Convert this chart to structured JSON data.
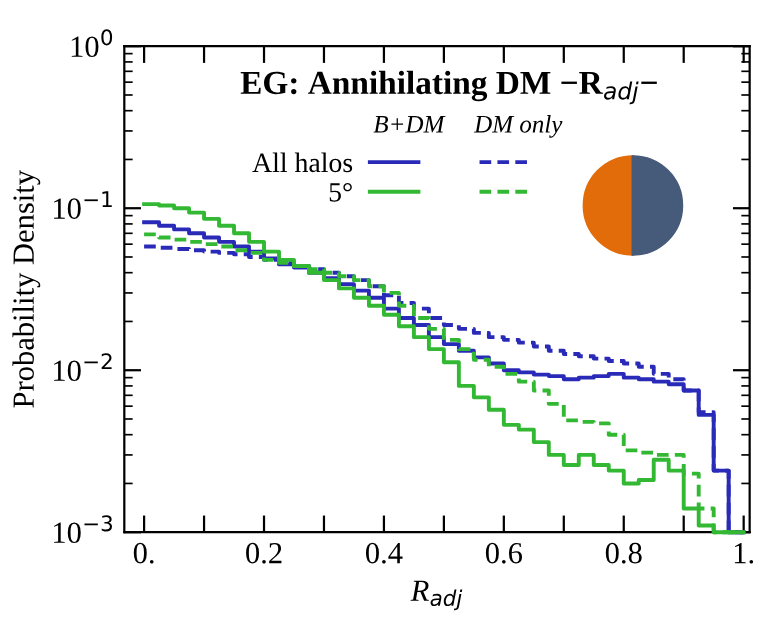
{
  "chart_data": {
    "type": "histogram",
    "title": "EG: Annihilating DM −R$_{adj}$−",
    "xlabel": "R$_{adj}$",
    "ylabel": "Probability Density",
    "bins": [
      0,
      0.025,
      0.05,
      0.075,
      0.1,
      0.125,
      0.15,
      0.175,
      0.2,
      0.225,
      0.25,
      0.275,
      0.3,
      0.325,
      0.35,
      0.375,
      0.4,
      0.425,
      0.45,
      0.475,
      0.5,
      0.525,
      0.55,
      0.575,
      0.6,
      0.625,
      0.65,
      0.675,
      0.7,
      0.725,
      0.75,
      0.775,
      0.8,
      0.825,
      0.85,
      0.875,
      0.9,
      0.925,
      0.95,
      0.975,
      1.0
    ],
    "series": [
      {
        "name": "All halos",
        "color": "#2a2ab8",
        "line_style": "solid",
        "values": [
          0.082,
          0.078,
          0.074,
          0.07,
          0.066,
          0.062,
          0.058,
          0.054,
          0.049,
          0.045,
          0.043,
          0.04,
          0.037,
          0.034,
          0.031,
          0.028,
          0.024,
          0.021,
          0.019,
          0.016,
          0.0145,
          0.0132,
          0.012,
          0.011,
          0.01,
          0.0097,
          0.0094,
          0.0092,
          0.0088,
          0.009,
          0.0092,
          0.0095,
          0.009,
          0.0088,
          0.0085,
          0.0082,
          0.0075,
          0.0053,
          0.0024,
          0.001
        ]
      },
      {
        "color": "#2a2ab8",
        "line_style": "dashed",
        "values": [
          0.058,
          0.057,
          0.056,
          0.055,
          0.054,
          0.053,
          0.052,
          0.05,
          0.048,
          0.046,
          0.044,
          0.042,
          0.04,
          0.038,
          0.036,
          0.033,
          0.029,
          0.026,
          0.024,
          0.021,
          0.019,
          0.018,
          0.017,
          0.016,
          0.0154,
          0.0148,
          0.014,
          0.0132,
          0.0126,
          0.0122,
          0.0118,
          0.0114,
          0.011,
          0.0105,
          0.0095,
          0.0088,
          0.0075,
          0.0055,
          0.0024,
          0.001
        ]
      },
      {
        "name": "5°",
        "color": "#33b833",
        "line_style": "solid",
        "values": [
          0.106,
          0.104,
          0.1,
          0.094,
          0.086,
          0.078,
          0.07,
          0.062,
          0.054,
          0.048,
          0.044,
          0.04,
          0.036,
          0.032,
          0.028,
          0.025,
          0.022,
          0.0187,
          0.016,
          0.0135,
          0.0112,
          0.008,
          0.0068,
          0.0057,
          0.0046,
          0.0043,
          0.0036,
          0.003,
          0.0026,
          0.003,
          0.0026,
          0.0024,
          0.002,
          0.0021,
          0.0028,
          0.0024,
          0.0014,
          0.0011,
          0.001,
          0.001
        ]
      },
      {
        "color": "#33b833",
        "line_style": "dashed",
        "values": [
          0.069,
          0.066,
          0.064,
          0.062,
          0.06,
          0.058,
          0.055,
          0.053,
          0.048,
          0.046,
          0.044,
          0.042,
          0.04,
          0.038,
          0.036,
          0.033,
          0.03,
          0.025,
          0.021,
          0.018,
          0.0154,
          0.0135,
          0.0116,
          0.0105,
          0.0095,
          0.0085,
          0.0075,
          0.0062,
          0.0049,
          0.0048,
          0.0047,
          0.004,
          0.0032,
          0.0031,
          0.003,
          0.003,
          0.0023,
          0.0014,
          0.001,
          0.001
        ]
      }
    ],
    "annotations": [
      "B+DM",
      "DM only"
    ],
    "legend": "top",
    "log": "y",
    "xlim": [
      -0.033,
      1.01
    ],
    "ylim": [
      0.001,
      1
    ],
    "xticks": [
      {
        "value": 0,
        "label": "0."
      },
      {
        "value": 0.1,
        "label": null
      },
      0.2,
      {
        "value": 0.3,
        "label": null
      },
      0.4,
      {
        "value": 0.5,
        "label": null
      },
      0.6,
      {
        "value": 0.7,
        "label": null
      },
      0.8,
      {
        "value": 0.9,
        "label": null
      },
      {
        "value": 1,
        "label": "1."
      }
    ],
    "yticks": [
      {
        "value": 0.001,
        "label": "10$^{−3}$"
      },
      {
        "value": 0.01,
        "label": "10$^{−2}$"
      },
      {
        "value": 0.1,
        "label": "10$^{−1}$"
      },
      {
        "value": 1,
        "label": "10$^{0}$"
      }
    ],
    "grid": false
  }
}
